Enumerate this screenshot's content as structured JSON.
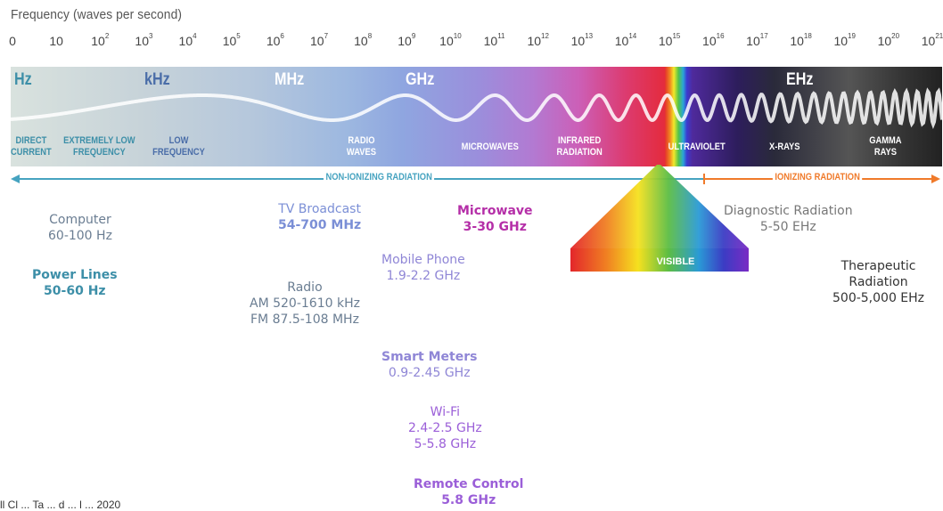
{
  "title": "Frequency (waves per second)",
  "ticks": [
    {
      "base": "0",
      "exp": ""
    },
    {
      "base": "10",
      "exp": ""
    },
    {
      "base": "10",
      "exp": "2"
    },
    {
      "base": "10",
      "exp": "3"
    },
    {
      "base": "10",
      "exp": "4"
    },
    {
      "base": "10",
      "exp": "5"
    },
    {
      "base": "10",
      "exp": "6"
    },
    {
      "base": "10",
      "exp": "7"
    },
    {
      "base": "10",
      "exp": "8"
    },
    {
      "base": "10",
      "exp": "9"
    },
    {
      "base": "10",
      "exp": "10"
    },
    {
      "base": "10",
      "exp": "11"
    },
    {
      "base": "10",
      "exp": "12"
    },
    {
      "base": "10",
      "exp": "13"
    },
    {
      "base": "10",
      "exp": "14"
    },
    {
      "base": "10",
      "exp": "15"
    },
    {
      "base": "10",
      "exp": "16"
    },
    {
      "base": "10",
      "exp": "17"
    },
    {
      "base": "10",
      "exp": "18"
    },
    {
      "base": "10",
      "exp": "19"
    },
    {
      "base": "10",
      "exp": "20"
    },
    {
      "base": "10",
      "exp": "21"
    }
  ],
  "units": {
    "hz": "Hz",
    "khz": "kHz",
    "mhz": "MHz",
    "ghz": "GHz",
    "ehz": "EHz"
  },
  "bands": {
    "dc": [
      "DIRECT",
      "CURRENT"
    ],
    "elf": [
      "EXTREMELY LOW",
      "FREQUENCY"
    ],
    "lf": [
      "LOW",
      "FREQUENCY"
    ],
    "radio": [
      "RADIO",
      "WAVES"
    ],
    "micro": [
      "MICROWAVES"
    ],
    "ir": [
      "INFRARED",
      "RADIATION"
    ],
    "uv": [
      "ULTRAVIOLET"
    ],
    "xray": [
      "X-RAYS"
    ],
    "gamma": [
      "GAMMA",
      "RAYS"
    ],
    "visible": "VISIBLE"
  },
  "arrows": {
    "non_ionizing": "NON-IONIZING RADIATION",
    "ionizing": "IONIZING RADIATION"
  },
  "applications": {
    "computer": {
      "name": "Computer",
      "range": "60-100 Hz"
    },
    "power": {
      "name": "Power Lines",
      "range": "50-60 Hz"
    },
    "tv": {
      "name": "TV Broadcast",
      "range": "54-700 MHz"
    },
    "radio": {
      "name": "Radio",
      "am": "AM 520-1610 kHz",
      "fm": "FM 87.5-108 MHz"
    },
    "mobile": {
      "name": "Mobile Phone",
      "range": "1.9-2.2 GHz"
    },
    "microwave": {
      "name": "Microwave",
      "range": "3-30 GHz"
    },
    "smart": {
      "name": "Smart Meters",
      "range": "0.9-2.45 GHz"
    },
    "wifi": {
      "name": "Wi-Fi",
      "r1": "2.4-2.5 GHz",
      "r2": "5-5.8 GHz"
    },
    "remote": {
      "name": "Remote Control",
      "range": "5.8 GHz"
    },
    "diag": {
      "name": "Diagnostic Radiation",
      "range": "5-50 EHz"
    },
    "thera": {
      "l1": "Therapeutic",
      "l2": "Radiation",
      "range": "500-5,000 EHz"
    }
  },
  "credit": "ll Cl ... Ta ... d ... l ... 2020",
  "colors": {
    "teal": "#3d8fa8",
    "slate": "#6a7d92",
    "periwinkle": "#7b8fd6",
    "lavender": "#8f86d6",
    "violet": "#9b5fd8",
    "magenta": "#b52fa8",
    "gray": "#777777",
    "dark": "#333333",
    "cyan_arrow": "#46a3c0",
    "orange_arrow": "#f07a2a"
  }
}
